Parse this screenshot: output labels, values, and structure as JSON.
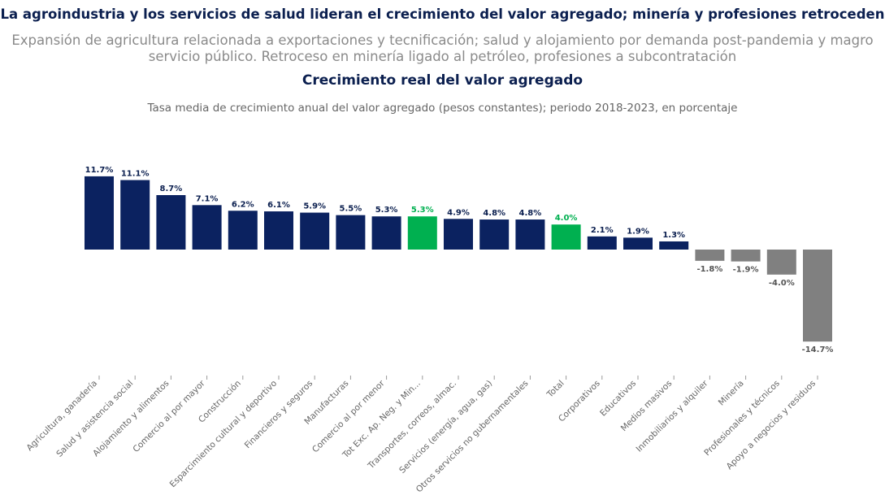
{
  "headline": "La agroindustria y los servicios de salud lideran el crecimiento del valor agregado; minería y profesiones retroceden",
  "subheadline": "Expansión de agricultura relacionada a exportaciones y tecnificación; salud y alojamiento por demanda post-pandemia y magro servicio público. Retroceso en minería ligado al petróleo, profesiones a subcontratación",
  "chart_data": {
    "type": "bar",
    "title": "Crecimiento real del valor agregado",
    "subtitle": "Tasa media de crecimiento anual del valor agregado (pesos constantes); periodo 2018-2023, en porcentaje",
    "xlabel": "",
    "ylabel": "",
    "categories": [
      "Agricultura, ganadería",
      "Salud y asistencia social",
      "Alojamiento y alimentos",
      "Comercio al por mayor",
      "Construcción",
      "Esparcimiento cultural y deportivo",
      "Financieros y seguros",
      "Manufacturas",
      "Comercio al por menor",
      "Tot Exc. Ap. Neg. y Min...",
      "Transportes, correos, almac.",
      "Servicios (energía, agua, gas)",
      "Otros servicios no gubernamentales",
      "Total",
      "Corporativos",
      "Educativos",
      "Medios masivos",
      "Inmobiliarios y alquiler",
      "Minería",
      "Profesionales y técnicos",
      "Apoyo a negocios y residuos"
    ],
    "values": [
      11.7,
      11.1,
      8.7,
      7.1,
      6.2,
      6.1,
      5.9,
      5.5,
      5.3,
      5.3,
      4.9,
      4.8,
      4.8,
      4.0,
      2.1,
      1.9,
      1.3,
      -1.8,
      -1.9,
      -4.0,
      -14.7
    ],
    "data_labels": [
      "11.7%",
      "11.1%",
      "8.7%",
      "7.1%",
      "6.2%",
      "6.1%",
      "5.9%",
      "5.5%",
      "5.3%",
      "5.3%",
      "4.9%",
      "4.8%",
      "4.8%",
      "4.0%",
      "2.1%",
      "1.9%",
      "1.3%",
      "-1.8%",
      "-1.9%",
      "-4.0%",
      "-14.7%"
    ],
    "highlighted": [
      "Tot Exc. Ap. Neg. y Min...",
      "Total"
    ],
    "colors": {
      "positive": "#0b2260",
      "highlight": "#00b050",
      "negative": "#808080"
    },
    "grid": false
  }
}
